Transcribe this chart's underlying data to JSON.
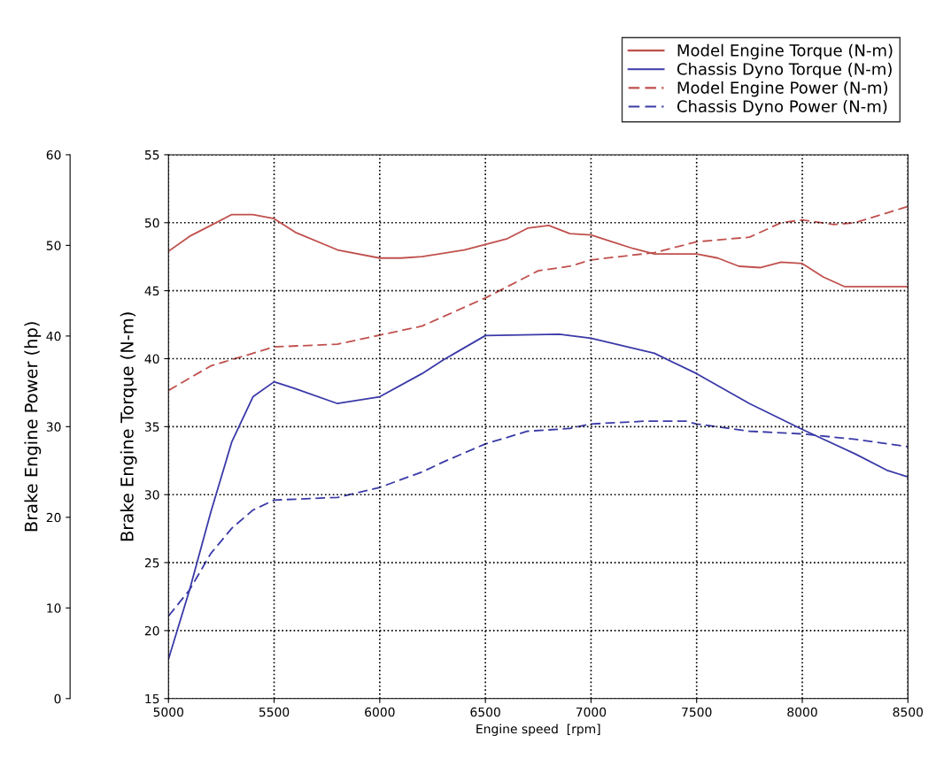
{
  "chart_data": {
    "type": "line",
    "xlabel": "Engine speed  [rpm]",
    "ylabel": "Brake Engine Torque (N-m)",
    "y2label": "Brake Engine Power (hp)",
    "xlim": [
      5000,
      8500
    ],
    "xticks": [
      5000,
      5500,
      6000,
      6500,
      7000,
      7500,
      8000,
      8500
    ],
    "ylim": [
      15,
      55
    ],
    "yticks": [
      15,
      20,
      25,
      30,
      35,
      40,
      45,
      50,
      55
    ],
    "y2lim": [
      0,
      60
    ],
    "y2ticks": [
      0,
      10,
      20,
      30,
      40,
      50,
      60
    ],
    "grid": true,
    "legend": "top right",
    "marker": "none",
    "series": [
      {
        "name": "Model Engine Torque (N-m)",
        "color": "#c0504d",
        "line_style": "solid",
        "x": [
          5000,
          5100,
          5200,
          5300,
          5400,
          5500,
          5600,
          5800,
          6000,
          6100,
          6200,
          6400,
          6500,
          6600,
          6700,
          6800,
          6900,
          7000,
          7100,
          7200,
          7300,
          7400,
          7500,
          7600,
          7700,
          7800,
          7900,
          8000,
          8100,
          8200,
          8300,
          8500
        ],
        "values": [
          47.9,
          49.0,
          49.8,
          50.6,
          50.6,
          50.3,
          49.3,
          48.0,
          47.4,
          47.4,
          47.5,
          48.0,
          48.4,
          48.8,
          49.6,
          49.8,
          49.2,
          49.1,
          48.6,
          48.1,
          47.7,
          47.7,
          47.7,
          47.4,
          46.8,
          46.7,
          47.1,
          47.0,
          46.0,
          45.3,
          45.3,
          45.3
        ]
      },
      {
        "name": "Chassis Dyno Torque (N-m)",
        "color": "#3a3aa8",
        "line_style": "solid",
        "x": [
          5000,
          5100,
          5200,
          5300,
          5400,
          5500,
          5600,
          5800,
          6000,
          6200,
          6300,
          6500,
          6850,
          7000,
          7300,
          7500,
          7750,
          8000,
          8250,
          8400,
          8500
        ],
        "values": [
          17.9,
          23.0,
          28.7,
          33.9,
          37.2,
          38.3,
          37.8,
          36.7,
          37.2,
          38.9,
          39.9,
          41.7,
          41.8,
          41.5,
          40.4,
          38.9,
          36.7,
          34.8,
          33.0,
          31.8,
          31.3
        ]
      },
      {
        "name": "Model Engine Power (N-m)",
        "color": "#c0504d",
        "line_style": "dashed",
        "axis": "y2",
        "x": [
          5000,
          5200,
          5500,
          5800,
          6000,
          6200,
          6500,
          6750,
          6900,
          7000,
          7300,
          7500,
          7750,
          7900,
          8000,
          8150,
          8250,
          8500
        ],
        "values": [
          34.0,
          36.7,
          38.8,
          39.1,
          40.1,
          41.1,
          44.2,
          47.2,
          47.7,
          48.4,
          49.2,
          50.4,
          50.9,
          52.5,
          52.8,
          52.3,
          52.5,
          54.3
        ]
      },
      {
        "name": "Chassis Dyno Power (N-m)",
        "color": "#3a3aa8",
        "line_style": "dashed",
        "axis": "y2",
        "x": [
          5000,
          5100,
          5200,
          5300,
          5400,
          5500,
          5800,
          6000,
          6200,
          6300,
          6500,
          6700,
          6900,
          7000,
          7250,
          7450,
          7500,
          7750,
          8000,
          8250,
          8500
        ],
        "values": [
          9.1,
          12.0,
          16.0,
          18.8,
          20.8,
          21.9,
          22.2,
          23.3,
          25.0,
          26.1,
          28.1,
          29.5,
          29.8,
          30.3,
          30.6,
          30.6,
          30.3,
          29.5,
          29.2,
          28.6,
          27.8
        ]
      }
    ]
  }
}
